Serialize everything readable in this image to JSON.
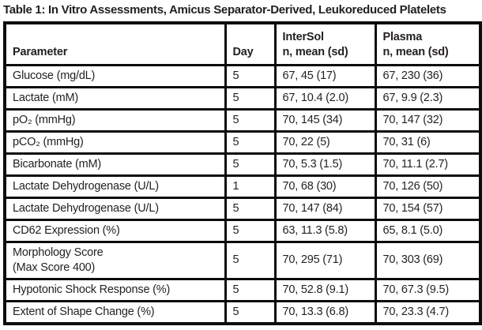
{
  "title": "Table 1: In Vitro Assessments, Amicus Separator-Derived, Leukoreduced Platelets",
  "colors": {
    "text": "#231f20",
    "border": "#0c0c0c",
    "background": "#ffffff"
  },
  "table": {
    "columns": {
      "parameter": "Parameter",
      "day": "Day",
      "intersol": "InterSol\nn, mean (sd)",
      "plasma": "Plasma\nn, mean (sd)"
    },
    "rows": [
      {
        "parameter": "Glucose (mg/dL)",
        "day": "5",
        "intersol": "67, 45 (17)",
        "plasma": "67, 230 (36)"
      },
      {
        "parameter": "Lactate (mM)",
        "day": "5",
        "intersol": "67, 10.4 (2.0)",
        "plasma": "67, 9.9 (2.3)"
      },
      {
        "parameter": "pO₂ (mmHg)",
        "day": "5",
        "intersol": "70, 145 (34)",
        "plasma": "70, 147 (32)"
      },
      {
        "parameter": "pCO₂ (mmHg)",
        "day": "5",
        "intersol": "70, 22 (5)",
        "plasma": "70, 31 (6)"
      },
      {
        "parameter": "Bicarbonate (mM)",
        "day": "5",
        "intersol": "70, 5.3 (1.5)",
        "plasma": "70, 11.1 (2.7)"
      },
      {
        "parameter": "Lactate Dehydrogenase (U/L)",
        "day": "1",
        "intersol": "70, 68 (30)",
        "plasma": "70, 126 (50)"
      },
      {
        "parameter": "Lactate Dehydrogenase (U/L)",
        "day": "5",
        "intersol": "70, 147 (84)",
        "plasma": "70, 154 (57)"
      },
      {
        "parameter": "CD62 Expression (%)",
        "day": "5",
        "intersol": "63, 11.3 (5.8)",
        "plasma": "65, 8.1 (5.0)"
      },
      {
        "parameter": "Morphology Score\n(Max Score 400)",
        "day": "5",
        "intersol": "70, 295 (71)",
        "plasma": "70, 303 (69)"
      },
      {
        "parameter": "Hypotonic Shock Response (%)",
        "day": "5",
        "intersol": "70, 52.8 (9.1)",
        "plasma": "70, 67.3 (9.5)"
      },
      {
        "parameter": "Extent of Shape Change (%)",
        "day": "5",
        "intersol": "70, 13.3 (6.8)",
        "plasma": "70, 23.3 (4.7)"
      }
    ]
  }
}
